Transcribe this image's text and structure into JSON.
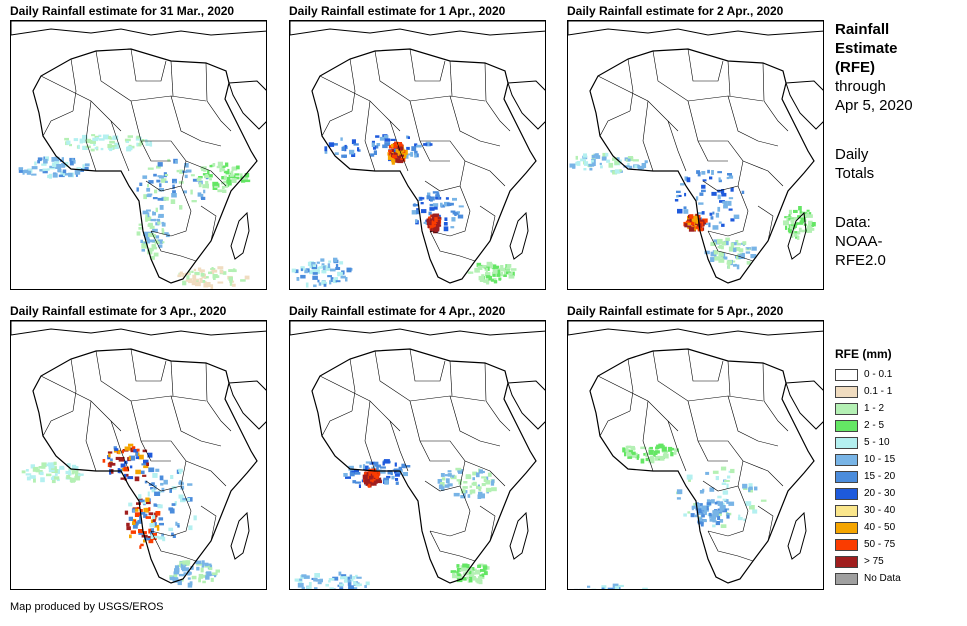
{
  "panels": [
    {
      "title": "Daily Rainfall estimate for 31 Mar., 2020",
      "rain_pattern": "moderate-central"
    },
    {
      "title": "Daily Rainfall estimate for 1 Apr., 2020",
      "rain_pattern": "heavy-west-central"
    },
    {
      "title": "Daily Rainfall estimate for 2 Apr., 2020",
      "rain_pattern": "heavy-congo"
    },
    {
      "title": "Daily Rainfall estimate for 3 Apr., 2020",
      "rain_pattern": "very-heavy-gabon-angola"
    },
    {
      "title": "Daily Rainfall estimate for 4 Apr., 2020",
      "rain_pattern": "heavy-nigeria-cameroon"
    },
    {
      "title": "Daily Rainfall estimate for 5 Apr., 2020",
      "rain_pattern": "light-central"
    }
  ],
  "sidebar": {
    "title_lines": [
      "Rainfall",
      "Estimate",
      "(RFE)"
    ],
    "through_lines": [
      "through",
      "Apr 5, 2020"
    ],
    "totals_lines": [
      "Daily",
      "Totals"
    ],
    "data_lines": [
      "Data:",
      "NOAA-",
      "RFE2.0"
    ]
  },
  "legend": {
    "title": "RFE (mm)",
    "items": [
      {
        "label": "0 - 0.1",
        "color": "#ffffff"
      },
      {
        "label": "0.1 - 1",
        "color": "#f0dcc0"
      },
      {
        "label": "1 - 2",
        "color": "#b4f0b4"
      },
      {
        "label": "2 - 5",
        "color": "#64e664"
      },
      {
        "label": "5 - 10",
        "color": "#b4f0f0"
      },
      {
        "label": "10 - 15",
        "color": "#78b4e6"
      },
      {
        "label": "15 - 20",
        "color": "#4b8cdc"
      },
      {
        "label": "20 - 30",
        "color": "#1e5adc"
      },
      {
        "label": "30 - 40",
        "color": "#fae68c"
      },
      {
        "label": "40 - 50",
        "color": "#f5a500"
      },
      {
        "label": "50 - 75",
        "color": "#fa3c00"
      },
      {
        "label": "> 75",
        "color": "#a01e1e"
      },
      {
        "label": "No Data",
        "color": "#a0a0a0"
      }
    ]
  },
  "credit": "Map produced by USGS/EROS"
}
